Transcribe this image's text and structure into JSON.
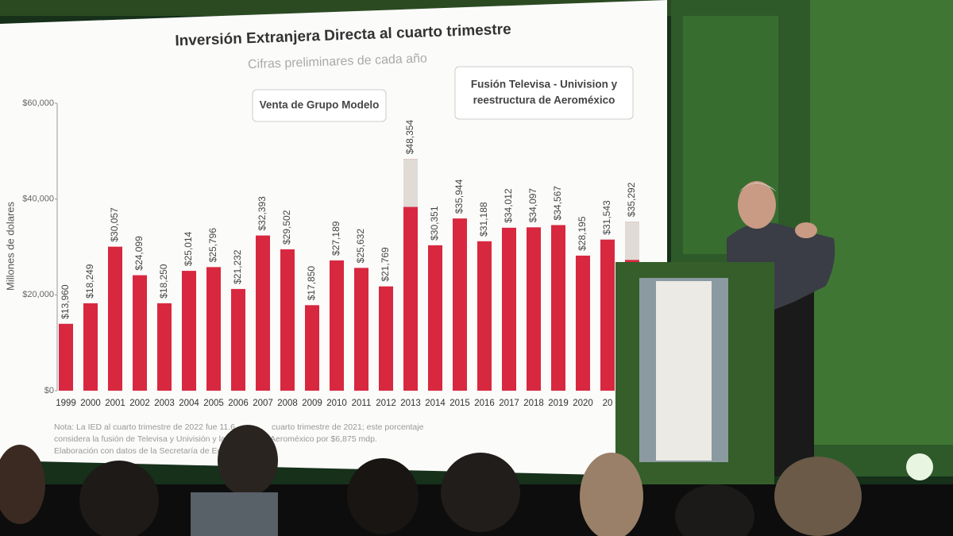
{
  "chart_data": {
    "type": "bar",
    "title": "Inversión Extranjera Directa al cuarto trimestre",
    "subtitle": "Cifras preliminares de cada año",
    "y_label": "Millones de dolares",
    "categories": [
      "1999",
      "2000",
      "2001",
      "2002",
      "2003",
      "2004",
      "2005",
      "2006",
      "2007",
      "2008",
      "2009",
      "2010",
      "2011",
      "2012",
      "2013",
      "2014",
      "2015",
      "2016",
      "2017",
      "2018",
      "2019",
      "2020",
      "20",
      null
    ],
    "values": [
      13960,
      18249,
      30057,
      24099,
      18250,
      25014,
      25796,
      21232,
      32393,
      29502,
      17850,
      27189,
      25632,
      21769,
      48354,
      30351,
      35944,
      31188,
      34012,
      34097,
      34567,
      28195,
      31543,
      35292
    ],
    "value_labels": [
      "$13,960",
      "$18,249",
      "$30,057",
      "$24,099",
      "$18,250",
      "$25,014",
      "$25,796",
      "$21,232",
      "$32,393",
      "$29,502",
      "$17,850",
      "$27,189",
      "$25,632",
      "$21,769",
      "$48,354",
      "$30,351",
      "$35,944",
      "$31,188",
      "$34,012",
      "$34,097",
      "$34,567",
      "$28,195",
      "$31,543",
      "$35,292"
    ],
    "color": "#d8283f",
    "special": [
      null,
      null,
      null,
      null,
      null,
      null,
      null,
      null,
      null,
      null,
      null,
      null,
      null,
      null,
      10000,
      null,
      null,
      null,
      null,
      null,
      null,
      null,
      null,
      8000
    ],
    "special_color": "#e0dbd5",
    "ylim": [
      0,
      60000
    ],
    "yticks": [
      {
        "value": 0,
        "label": "$0"
      },
      {
        "value": 20000,
        "label": "$20,000"
      },
      {
        "value": 40000,
        "label": "$40,000"
      },
      {
        "value": 60000,
        "label": "$60,000"
      }
    ],
    "grid": false,
    "annotations": [
      [
        "Venta de Grupo Modelo"
      ],
      [
        "Fusión Televisa - Univision y",
        "reestructura de Aeroméxico"
      ]
    ],
    "notes": [
      "Nota: La IED al cuarto trimestre de 2022 fue 11.6",
      "cuarto trimestre de 2021; este porcentaje",
      "considera la fusión de Televisa y Univisión y la",
      "Aeroméxico por $6,875 mdp.",
      "Elaboración con datos de la Secretaría de Eco"
    ]
  }
}
